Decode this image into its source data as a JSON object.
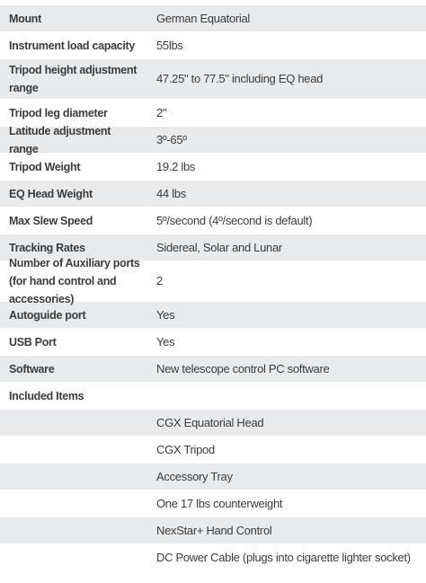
{
  "specs": {
    "rows": [
      {
        "label": "Mount",
        "value": "German Equatorial"
      },
      {
        "label": "Instrument load capacity",
        "value": "55lbs"
      },
      {
        "label": "Tripod height adjustment range",
        "value": "47.25\" to 77.5\" including EQ head"
      },
      {
        "label": "Tripod leg diameter",
        "value": "2\""
      },
      {
        "label": "Latitude adjustment range",
        "value": "3º-65º"
      },
      {
        "label": "Tripod Weight",
        "value": "19.2 lbs"
      },
      {
        "label": "EQ Head Weight",
        "value": "44 lbs"
      },
      {
        "label": "Max Slew Speed",
        "value": "5º/second (4º/second is default)"
      },
      {
        "label": "Tracking Rates",
        "value": "Sidereal, Solar and Lunar"
      },
      {
        "label": "Number of Auxiliary ports (for hand control and accessories)",
        "value": "2"
      },
      {
        "label": "Autoguide port",
        "value": "Yes"
      },
      {
        "label": "USB Port",
        "value": "Yes"
      },
      {
        "label": "Software",
        "value": "New telescope control PC software"
      },
      {
        "label": "Included Items",
        "value": ""
      },
      {
        "label": "",
        "value": "CGX Equatorial Head"
      },
      {
        "label": "",
        "value": "CGX Tripod"
      },
      {
        "label": "",
        "value": "Accessory Tray"
      },
      {
        "label": "",
        "value": "One 17 lbs counterweight"
      },
      {
        "label": "",
        "value": "NexStar+ Hand Control"
      },
      {
        "label": "",
        "value": "DC Power Cable (plugs into cigarette lighter socket)"
      }
    ]
  }
}
